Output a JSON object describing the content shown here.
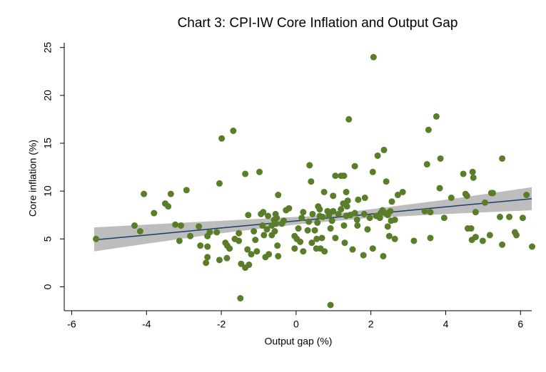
{
  "chart_data": {
    "type": "scatter",
    "title": "Chart 3: CPI-IW Core Inflation and Output Gap",
    "x_label": "Output gap (%)",
    "y_label": "Core inflation (%)",
    "xlim": [
      -6.2,
      6.3
    ],
    "ylim": [
      -2.5,
      25.5
    ],
    "xticks": [
      -6,
      -4,
      -2,
      0,
      2,
      4,
      6
    ],
    "yticks": [
      0,
      5,
      10,
      15,
      20,
      25
    ],
    "color": "#5a7d2a",
    "x": [
      -5.35,
      -4.32,
      -4.17,
      -4.07,
      -3.8,
      -3.5,
      -3.42,
      -3.35,
      -3.23,
      -3.08,
      -3.12,
      -2.93,
      -2.83,
      -2.6,
      -2.56,
      -2.41,
      -2.37,
      -2.37,
      -2.37,
      -2.31,
      -2.12,
      -2.05,
      -2.05,
      -1.99,
      -1.89,
      -1.84,
      -1.78,
      -1.85,
      -1.68,
      -1.64,
      -1.53,
      -1.53,
      -1.49,
      -1.47,
      -1.36,
      -1.36,
      -1.3,
      -1.26,
      -1.2,
      -1.28,
      -1.13,
      -1.09,
      -1.05,
      -0.98,
      -0.94,
      -0.88,
      -0.9,
      -0.86,
      -0.82,
      -0.78,
      -0.75,
      -0.73,
      -0.65,
      -0.65,
      -0.59,
      -0.57,
      -0.55,
      -0.54,
      -0.52,
      -0.5,
      -0.48,
      -0.48,
      -0.38,
      -0.33,
      -0.27,
      -0.19,
      -0.04,
      -0.04,
      0.02,
      0.06,
      0.11,
      0.15,
      0.19,
      0.19,
      0.31,
      0.34,
      0.36,
      0.4,
      0.42,
      0.44,
      0.5,
      0.54,
      0.55,
      0.57,
      0.59,
      0.63,
      0.63,
      0.65,
      0.69,
      0.71,
      0.75,
      0.76,
      0.84,
      0.88,
      0.92,
      0.92,
      0.96,
      0.99,
      0.99,
      1.05,
      1.05,
      1.13,
      1.2,
      1.2,
      1.26,
      1.28,
      1.28,
      1.3,
      1.34,
      1.34,
      1.36,
      1.38,
      1.41,
      1.45,
      1.51,
      1.57,
      1.57,
      1.63,
      1.64,
      1.66,
      1.8,
      1.82,
      1.84,
      1.91,
      1.97,
      2.05,
      2.07,
      2.05,
      2.14,
      2.18,
      2.24,
      2.26,
      2.31,
      2.33,
      2.35,
      2.39,
      2.41,
      2.45,
      2.45,
      2.49,
      2.52,
      2.54,
      2.56,
      2.64,
      2.64,
      2.72,
      2.85,
      3.15,
      3.44,
      3.5,
      3.54,
      3.59,
      3.59,
      3.75,
      3.84,
      3.86,
      3.96,
      4.15,
      4.47,
      4.53,
      4.57,
      4.59,
      4.68,
      4.72,
      4.7,
      4.74,
      4.8,
      4.8,
      4.99,
      5.05,
      5.22,
      5.26,
      5.18,
      5.45,
      5.51,
      5.51,
      5.7,
      5.85,
      5.89,
      6.06,
      6.16,
      6.31
    ],
    "values": [
      5.0,
      6.4,
      5.8,
      9.7,
      7.7,
      8.7,
      8.4,
      9.7,
      6.5,
      6.4,
      4.8,
      10.1,
      5.3,
      6.3,
      4.3,
      2.5,
      4.2,
      3.1,
      5.3,
      5.7,
      5.7,
      2.8,
      10.8,
      15.5,
      4.6,
      4.3,
      4.0,
      3.0,
      16.3,
      5.0,
      5.6,
      4.8,
      -1.2,
      2.4,
      2.0,
      11.8,
      3.9,
      2.3,
      3.4,
      7.5,
      5.8,
      4.9,
      3.7,
      12.0,
      7.6,
      7.8,
      6.4,
      5.4,
      3.1,
      6.0,
      7.4,
      3.4,
      5.4,
      6.4,
      7.0,
      5.8,
      7.6,
      6.6,
      7.2,
      4.3,
      3.2,
      9.6,
      6.6,
      6.9,
      8.0,
      8.2,
      4.0,
      5.3,
      5.0,
      6.1,
      4.7,
      7.2,
      3.7,
      7.8,
      5.9,
      6.8,
      12.7,
      11.0,
      4.6,
      7.6,
      5.9,
      4.0,
      5.0,
      6.7,
      8.4,
      8.1,
      7.4,
      4.0,
      5.1,
      7.3,
      9.9,
      3.7,
      7.9,
      7.5,
      6.1,
      -1.9,
      6.9,
      9.5,
      7.9,
      11.6,
      5.1,
      7.6,
      11.6,
      8.1,
      8.7,
      11.6,
      6.4,
      4.6,
      7.4,
      9.9,
      8.4,
      9.0,
      17.5,
      7.5,
      3.9,
      12.6,
      7.7,
      7.0,
      6.4,
      9.1,
      3.3,
      7.6,
      9.3,
      6.0,
      7.2,
      12.0,
      24.0,
      4.0,
      7.4,
      13.7,
      7.2,
      7.7,
      8.0,
      3.2,
      14.3,
      7.7,
      11.0,
      6.3,
      7.5,
      5.3,
      7.9,
      6.9,
      8.9,
      5.0,
      7.0,
      9.6,
      9.9,
      4.8,
      7.9,
      12.8,
      16.4,
      5.1,
      7.8,
      17.8,
      10.3,
      13.4,
      7.2,
      9.3,
      11.8,
      9.7,
      9.5,
      6.1,
      6.1,
      12.0,
      4.9,
      11.4,
      5.2,
      7.8,
      4.8,
      8.8,
      9.8,
      9.8,
      5.4,
      7.3,
      4.4,
      13.4,
      7.3,
      5.7,
      5.4,
      7.2,
      9.6,
      4.2
    ],
    "fit": {
      "color": "#1f3b6e",
      "band_color": "#bdbdbd",
      "x": [
        -5.4,
        -4,
        -2,
        0,
        0.5,
        2,
        4,
        6.3
      ],
      "values": [
        4.9,
        5.4,
        6.15,
        6.88,
        7.06,
        7.6,
        8.35,
        9.2
      ],
      "lower": [
        3.7,
        4.5,
        5.6,
        6.5,
        6.7,
        7.2,
        7.6,
        8.0
      ],
      "upper": [
        6.2,
        6.5,
        6.9,
        7.3,
        7.4,
        8.1,
        9.1,
        10.4
      ]
    }
  }
}
